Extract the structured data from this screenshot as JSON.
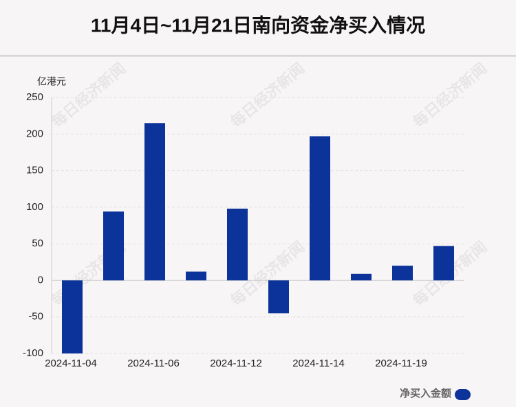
{
  "chart_data": {
    "type": "bar",
    "title": "11月4日~11月21日南向资金净买入情况",
    "y_label": "亿港元",
    "categories": [
      "2024-11-04",
      null,
      "2024-11-06",
      null,
      "2024-11-12",
      null,
      "2024-11-14",
      null,
      "2024-11-19",
      null
    ],
    "series": [
      {
        "name": "净买入金额",
        "color": "#0c3399",
        "values": [
          -100,
          94,
          215,
          12,
          98,
          -45,
          197,
          9,
          20,
          47
        ]
      }
    ],
    "ylim": [
      -100,
      250
    ],
    "yticks": [
      -100,
      -50,
      0,
      50,
      100,
      150,
      200,
      250
    ],
    "grid": true,
    "legend": "bottom-right",
    "watermark": "每日经济新闻"
  }
}
